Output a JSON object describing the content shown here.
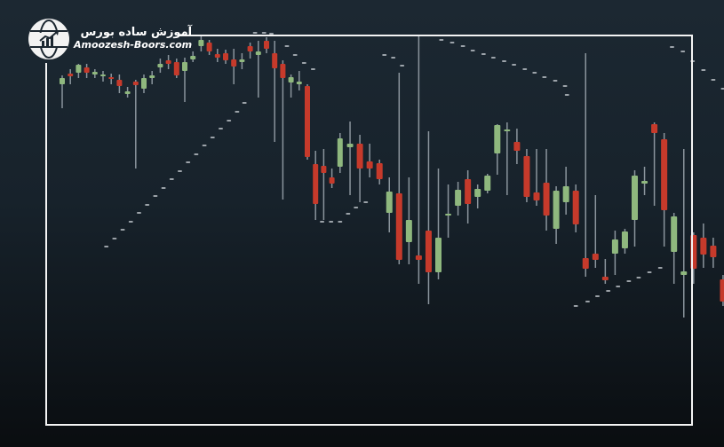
{
  "brand": {
    "name_fa": "آموزش ساده بورس",
    "site": "Amoozesh-Boors.com",
    "logo_icon": "globe-chart-icon"
  },
  "colors": {
    "bullish": "#8fb87e",
    "bearish": "#c63a2b",
    "wick": "#8b959d",
    "sar_dot": "#c9cfd4",
    "frame": "#f4f4f4"
  },
  "chart_data": {
    "type": "candlestick",
    "title": "",
    "xlabel": "",
    "ylabel": "",
    "grid": false,
    "axes_visible": false,
    "candles_ohlc": [
      [
        305,
        315,
        278,
        312
      ],
      [
        317,
        322,
        305,
        314
      ],
      [
        318,
        328,
        312,
        327
      ],
      [
        324,
        328,
        312,
        318
      ],
      [
        316,
        322,
        312,
        319
      ],
      [
        314,
        320,
        308,
        316
      ],
      [
        313,
        317,
        305,
        311
      ],
      [
        310,
        316,
        295,
        303
      ],
      [
        294,
        302,
        290,
        297
      ],
      [
        308,
        310,
        210,
        304
      ],
      [
        300,
        316,
        295,
        312
      ],
      [
        312,
        320,
        305,
        315
      ],
      [
        324,
        334,
        318,
        328
      ],
      [
        332,
        338,
        322,
        328
      ],
      [
        330,
        334,
        312,
        315
      ],
      [
        320,
        335,
        285,
        330
      ],
      [
        333,
        342,
        330,
        337
      ],
      [
        348,
        360,
        342,
        355
      ],
      [
        352,
        355,
        338,
        342
      ],
      [
        339,
        345,
        330,
        335
      ],
      [
        340,
        344,
        328,
        332
      ],
      [
        333,
        345,
        305,
        325
      ],
      [
        330,
        340,
        322,
        333
      ],
      [
        348,
        352,
        334,
        342
      ],
      [
        338,
        354,
        290,
        342
      ],
      [
        354,
        358,
        340,
        345
      ],
      [
        340,
        354,
        240,
        323
      ],
      [
        328,
        332,
        175,
        312
      ],
      [
        307,
        316,
        290,
        313
      ],
      [
        305,
        320,
        298,
        308
      ],
      [
        303,
        305,
        220,
        223
      ],
      [
        215,
        230,
        152,
        170
      ],
      [
        213,
        232,
        152,
        205
      ],
      [
        200,
        210,
        188,
        193
      ],
      [
        212,
        250,
        205,
        244
      ],
      [
        234,
        263,
        180,
        238
      ],
      [
        238,
        248,
        172,
        210
      ],
      [
        218,
        238,
        200,
        210
      ],
      [
        216,
        220,
        192,
        198
      ],
      [
        160,
        200,
        138,
        184
      ],
      [
        182,
        318,
        102,
        107
      ],
      [
        127,
        200,
        102,
        152
      ],
      [
        112,
        360,
        80,
        107
      ],
      [
        140,
        252,
        57,
        93
      ],
      [
        93,
        210,
        85,
        132
      ],
      [
        157,
        192,
        132,
        159
      ],
      [
        168,
        195,
        157,
        186
      ],
      [
        198,
        208,
        148,
        170
      ],
      [
        178,
        192,
        165,
        187
      ],
      [
        185,
        204,
        182,
        202
      ],
      [
        227,
        260,
        203,
        259
      ],
      [
        252,
        262,
        180,
        254
      ],
      [
        240,
        255,
        215,
        230
      ],
      [
        224,
        232,
        172,
        178
      ],
      [
        183,
        232,
        168,
        174
      ],
      [
        194,
        232,
        140,
        157
      ],
      [
        142,
        190,
        125,
        185
      ],
      [
        172,
        212,
        158,
        190
      ],
      [
        185,
        192,
        138,
        147
      ],
      [
        109,
        340,
        88,
        97
      ],
      [
        114,
        180,
        98,
        107
      ],
      [
        88,
        108,
        80,
        84
      ],
      [
        114,
        140,
        90,
        130
      ],
      [
        120,
        142,
        114,
        139
      ],
      [
        152,
        208,
        122,
        202
      ],
      [
        193,
        212,
        180,
        196
      ],
      [
        260,
        262,
        168,
        250
      ],
      [
        243,
        250,
        122,
        163
      ],
      [
        116,
        160,
        80,
        156
      ],
      [
        90,
        232,
        42,
        94
      ],
      [
        135,
        138,
        80,
        97
      ],
      [
        132,
        148,
        98,
        113
      ],
      [
        123,
        132,
        98,
        110
      ],
      [
        85,
        90,
        55,
        60
      ]
    ],
    "parabolic_sar": [
      [
        5.4,
        122
      ],
      [
        6.4,
        131
      ],
      [
        7.4,
        141
      ],
      [
        8.4,
        150
      ],
      [
        9.4,
        160
      ],
      [
        10.4,
        169
      ],
      [
        11.4,
        179
      ],
      [
        12.4,
        188
      ],
      [
        13.4,
        198
      ],
      [
        14.4,
        207
      ],
      [
        15.4,
        217
      ],
      [
        16.4,
        226
      ],
      [
        17.4,
        236
      ],
      [
        18.4,
        245
      ],
      [
        19.4,
        255
      ],
      [
        20.4,
        264
      ],
      [
        21.4,
        274
      ],
      [
        22.3,
        284
      ],
      [
        23.6,
        363
      ],
      [
        24.7,
        363
      ],
      [
        25.6,
        362
      ],
      [
        27.5,
        348
      ],
      [
        28.5,
        338
      ],
      [
        29.6,
        329
      ],
      [
        30.7,
        322
      ],
      [
        31.8,
        150
      ],
      [
        32.9,
        150
      ],
      [
        34.0,
        150
      ],
      [
        34.8,
        159
      ],
      [
        35.6,
        166
      ],
      [
        36.6,
        172
      ],
      [
        38.5,
        338
      ],
      [
        39.4,
        335
      ],
      [
        40.3,
        326
      ],
      [
        44.3,
        355
      ],
      [
        45.4,
        352
      ],
      [
        46.5,
        348
      ],
      [
        47.5,
        343
      ],
      [
        48.6,
        339
      ],
      [
        49.6,
        335
      ],
      [
        50.7,
        331
      ],
      [
        51.7,
        327
      ],
      [
        52.8,
        322
      ],
      [
        53.8,
        318
      ],
      [
        54.8,
        313
      ],
      [
        55.9,
        309
      ],
      [
        56.9,
        303
      ],
      [
        57.1,
        293
      ],
      [
        58.0,
        55
      ],
      [
        59.2,
        60
      ],
      [
        60.2,
        66
      ],
      [
        61.3,
        72
      ],
      [
        62.3,
        77
      ],
      [
        63.4,
        83
      ],
      [
        64.4,
        87
      ],
      [
        65.5,
        93
      ],
      [
        66.6,
        98
      ],
      [
        67.8,
        347
      ],
      [
        68.9,
        342
      ],
      [
        69.9,
        331
      ],
      [
        71.0,
        321
      ],
      [
        72.0,
        310
      ],
      [
        73.0,
        300
      ]
    ]
  }
}
